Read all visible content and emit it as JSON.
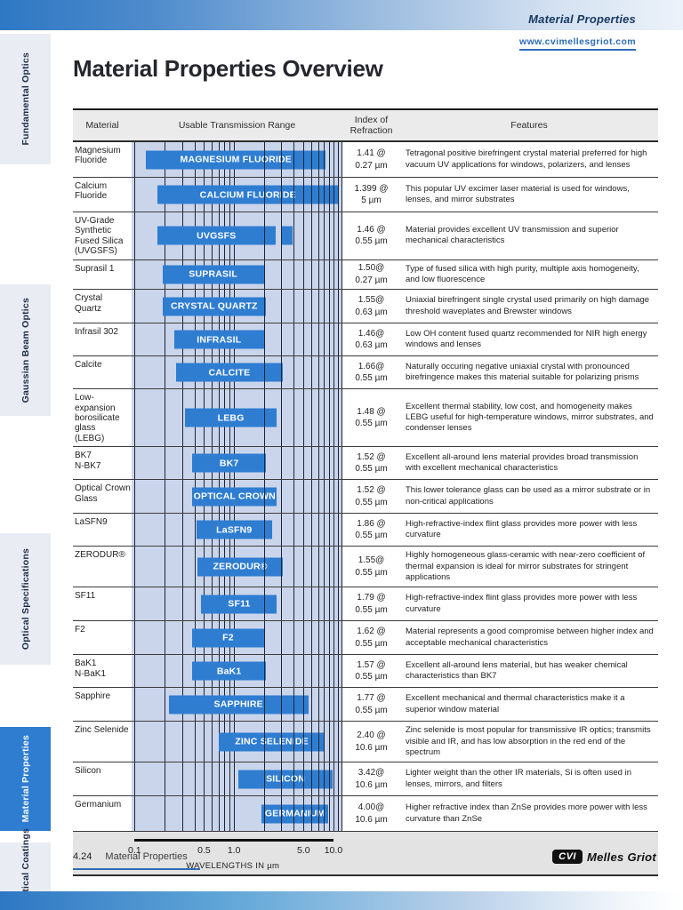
{
  "header": {
    "band_title": "Material Properties",
    "url": "www.cvimellesgriot.com"
  },
  "title": "Material Properties Overview",
  "sidebar": {
    "items": [
      {
        "label": "Fundamental Optics",
        "active": false
      },
      {
        "label": "Gaussian Beam Optics",
        "active": false
      },
      {
        "label": "Optical Specifications",
        "active": false
      },
      {
        "label": "Material Properties",
        "active": true
      },
      {
        "label": "Optical Coatings",
        "active": false
      }
    ]
  },
  "table": {
    "headers": {
      "material": "Material",
      "range": "Usable Transmission Range",
      "index": "Index of\nRefraction",
      "features": "Features"
    },
    "rows": [
      {
        "material": "Magnesium\nFluoride",
        "bar_label": "MAGNESIUM FLUORIDE",
        "segments": [
          [
            0.13,
            8.4
          ]
        ],
        "index_line1": "1.41 @",
        "index_line2": "0.27 µm",
        "features": "Tetragonal positive birefringent crystal material preferred for high vacuum UV applications for windows, polarizers, and lenses"
      },
      {
        "material": "Calcium\nFluoride",
        "bar_label": "CALCIUM FLUORIDE",
        "segments": [
          [
            0.17,
            11.2
          ]
        ],
        "index_line1": "1.399 @",
        "index_line2": "5 µm",
        "features": "This popular UV excimer laser material is used for windows, lenses, and mirror substrates"
      },
      {
        "material": "UV-Grade\nSynthetic\nFused Silica\n(UVGSFS)",
        "bar_label": "UVGSFS",
        "segments": [
          [
            0.17,
            2.6
          ],
          [
            3.0,
            3.9
          ]
        ],
        "index_line1": "1.46 @",
        "index_line2": "0.55 µm",
        "features": "Material provides excellent UV transmission and superior mechanical characteristics"
      },
      {
        "material": "Suprasil 1",
        "bar_label": "SUPRASIL",
        "segments": [
          [
            0.19,
            2.0
          ]
        ],
        "index_line1": "1.50@",
        "index_line2": "0.27 µm",
        "features": "Type of fused silica with high purity, multiple axis homogeneity, and low fluorescence"
      },
      {
        "material": "Crystal Quartz",
        "bar_label": "CRYSTAL QUARTZ",
        "segments": [
          [
            0.19,
            2.1
          ]
        ],
        "index_line1": "1.55@",
        "index_line2": "0.63 µm",
        "features": "Uniaxial birefringent single crystal used primarily on high damage threshold waveplates and Brewster windows"
      },
      {
        "material": "Infrasil 302",
        "bar_label": "INFRASIL",
        "segments": [
          [
            0.25,
            2.0
          ]
        ],
        "index_line1": "1.46@",
        "index_line2": "0.63 µm",
        "features": "Low OH content fused quartz recommended for NIR high energy windows and lenses"
      },
      {
        "material": "Calcite",
        "bar_label": "CALCITE",
        "segments": [
          [
            0.26,
            3.1
          ]
        ],
        "index_line1": "1.66@",
        "index_line2": "0.55 µm",
        "features": "Naturally occuring negative uniaxial crystal with pronounced birefringence makes this material suitable for polarizing prisms"
      },
      {
        "material": "Low-expansion\nborosilicate glass\n(LEBG)",
        "bar_label": "LEBG",
        "segments": [
          [
            0.32,
            2.7
          ]
        ],
        "index_line1": "1.48 @",
        "index_line2": "0.55 µm",
        "features": "Excellent thermal stability, low cost, and homogeneity makes LEBG useful for high-temperature windows, mirror substrates, and condenser lenses"
      },
      {
        "material": "BK7\nN-BK7",
        "bar_label": "BK7",
        "segments": [
          [
            0.38,
            2.1
          ]
        ],
        "index_line1": "1.52 @",
        "index_line2": "0.55 µm",
        "features": "Excellent all-around lens material provides broad transmission with excellent mechanical characteristics"
      },
      {
        "material": "Optical Crown\nGlass",
        "bar_label": "OPTICAL CROWN",
        "segments": [
          [
            0.38,
            2.7
          ]
        ],
        "index_line1": "1.52 @",
        "index_line2": "0.55 µm",
        "features": "This lower tolerance glass can be used as a mirror substrate or in non-critical applications"
      },
      {
        "material": "LaSFN9",
        "bar_label": "LaSFN9",
        "segments": [
          [
            0.42,
            2.4
          ]
        ],
        "index_line1": "1.86 @",
        "index_line2": "0.55 µm",
        "features": "High-refractive-index flint glass provides more power with less curvature"
      },
      {
        "material": "ZERODUR®",
        "bar_label": "ZERODUR®",
        "segments": [
          [
            0.43,
            3.1
          ]
        ],
        "index_line1": "1.55@",
        "index_line2": "0.55 µm",
        "features": "Highly homogeneous glass-ceramic with near-zero coefficient of thermal expansion is ideal for mirror substrates for stringent applications"
      },
      {
        "material": "SF11",
        "bar_label": "SF11",
        "segments": [
          [
            0.47,
            2.7
          ]
        ],
        "index_line1": "1.79 @",
        "index_line2": "0.55 µm",
        "features": "High-refractive-index flint glass provides more power with less curvature"
      },
      {
        "material": "F2",
        "bar_label": "F2",
        "segments": [
          [
            0.38,
            2.0
          ]
        ],
        "index_line1": "1.62 @",
        "index_line2": "0.55 µm",
        "features": "Material represents a good compromise between higher index and acceptable mechanical characteristics"
      },
      {
        "material": "BaK1\nN-BaK1",
        "bar_label": "BaK1",
        "segments": [
          [
            0.38,
            2.1
          ]
        ],
        "index_line1": "1.57 @",
        "index_line2": "0.55 µm",
        "features": "Excellent all-around lens material, but has weaker chemical characteristics than BK7"
      },
      {
        "material": "Sapphire",
        "bar_label": "SAPPHIRE",
        "segments": [
          [
            0.22,
            5.6
          ]
        ],
        "index_line1": "1.77 @",
        "index_line2": "0.55 µm",
        "features": "Excellent mechanical and thermal characteristics make it a superior window material"
      },
      {
        "material": "Zinc Selenide",
        "bar_label": "ZINC SELENIDE",
        "segments": [
          [
            0.7,
            8.2
          ]
        ],
        "index_line1": "2.40 @",
        "index_line2": "10.6 µm",
        "features": "Zinc selenide is most popular for transmissive IR optics; transmits visible and IR, and has low absorption in the red end of the spectrum"
      },
      {
        "material": "Silicon",
        "bar_label": "SILICON",
        "segments": [
          [
            1.1,
            9.9
          ]
        ],
        "index_line1": "3.42@",
        "index_line2": "10.6 µm",
        "features": "Lighter weight than the other IR materials, Si is often used in lenses, mirrors, and filters"
      },
      {
        "material": "Germanium",
        "bar_label": "GERMANIUM",
        "segments": [
          [
            1.9,
            8.9
          ]
        ],
        "index_line1": "4.00@",
        "index_line2": "10.6 µm",
        "features": "Higher refractive index than ZnSe provides more power with less curvature than ZnSe"
      }
    ]
  },
  "chart_data": {
    "type": "bar",
    "subtype": "horizontal-range-log",
    "title": "Usable Transmission Range",
    "xlabel": "WAVELENGTHS IN µm",
    "xscale": "log",
    "xlim": [
      0.093,
      12.3
    ],
    "tick_values": [
      0.1,
      0.5,
      1.0,
      5.0,
      10.0
    ],
    "tick_labels": [
      "0.1",
      "0.5",
      "1.0",
      "5.0",
      "10.0"
    ],
    "gridlines": [
      0.1,
      0.2,
      0.3,
      0.4,
      0.5,
      0.6,
      0.7,
      0.8,
      0.9,
      1,
      2,
      3,
      4,
      5,
      6,
      7,
      8,
      9,
      10,
      11,
      12
    ],
    "series": [
      {
        "name": "MAGNESIUM FLUORIDE",
        "ranges_um": [
          [
            0.13,
            8.4
          ]
        ]
      },
      {
        "name": "CALCIUM FLUORIDE",
        "ranges_um": [
          [
            0.17,
            11.2
          ]
        ]
      },
      {
        "name": "UVGSFS",
        "ranges_um": [
          [
            0.17,
            2.6
          ],
          [
            3.0,
            3.9
          ]
        ]
      },
      {
        "name": "SUPRASIL",
        "ranges_um": [
          [
            0.19,
            2.0
          ]
        ]
      },
      {
        "name": "CRYSTAL QUARTZ",
        "ranges_um": [
          [
            0.19,
            2.1
          ]
        ]
      },
      {
        "name": "INFRASIL",
        "ranges_um": [
          [
            0.25,
            2.0
          ]
        ]
      },
      {
        "name": "CALCITE",
        "ranges_um": [
          [
            0.26,
            3.1
          ]
        ]
      },
      {
        "name": "LEBG",
        "ranges_um": [
          [
            0.32,
            2.7
          ]
        ]
      },
      {
        "name": "BK7",
        "ranges_um": [
          [
            0.38,
            2.1
          ]
        ]
      },
      {
        "name": "OPTICAL CROWN",
        "ranges_um": [
          [
            0.38,
            2.7
          ]
        ]
      },
      {
        "name": "LaSFN9",
        "ranges_um": [
          [
            0.42,
            2.4
          ]
        ]
      },
      {
        "name": "ZERODUR®",
        "ranges_um": [
          [
            0.43,
            3.1
          ]
        ]
      },
      {
        "name": "SF11",
        "ranges_um": [
          [
            0.47,
            2.7
          ]
        ]
      },
      {
        "name": "F2",
        "ranges_um": [
          [
            0.38,
            2.0
          ]
        ]
      },
      {
        "name": "BaK1",
        "ranges_um": [
          [
            0.38,
            2.1
          ]
        ]
      },
      {
        "name": "SAPPHIRE",
        "ranges_um": [
          [
            0.22,
            5.6
          ]
        ]
      },
      {
        "name": "ZINC SELENIDE",
        "ranges_um": [
          [
            0.7,
            8.2
          ]
        ]
      },
      {
        "name": "SILICON",
        "ranges_um": [
          [
            1.1,
            9.9
          ]
        ]
      },
      {
        "name": "GERMANIUM",
        "ranges_um": [
          [
            1.9,
            8.9
          ]
        ]
      }
    ]
  },
  "colors": {
    "accent_blue": "#2e7dd1",
    "chart_bg": "#cad5eb",
    "gridline": "#1d2534",
    "band_blue": "#2e78c4",
    "link_blue": "#2e6cb6"
  },
  "footer": {
    "page_number": "4.24",
    "section": "Material Properties",
    "logo_box": "CVI",
    "logo_name": "Melles Griot"
  }
}
